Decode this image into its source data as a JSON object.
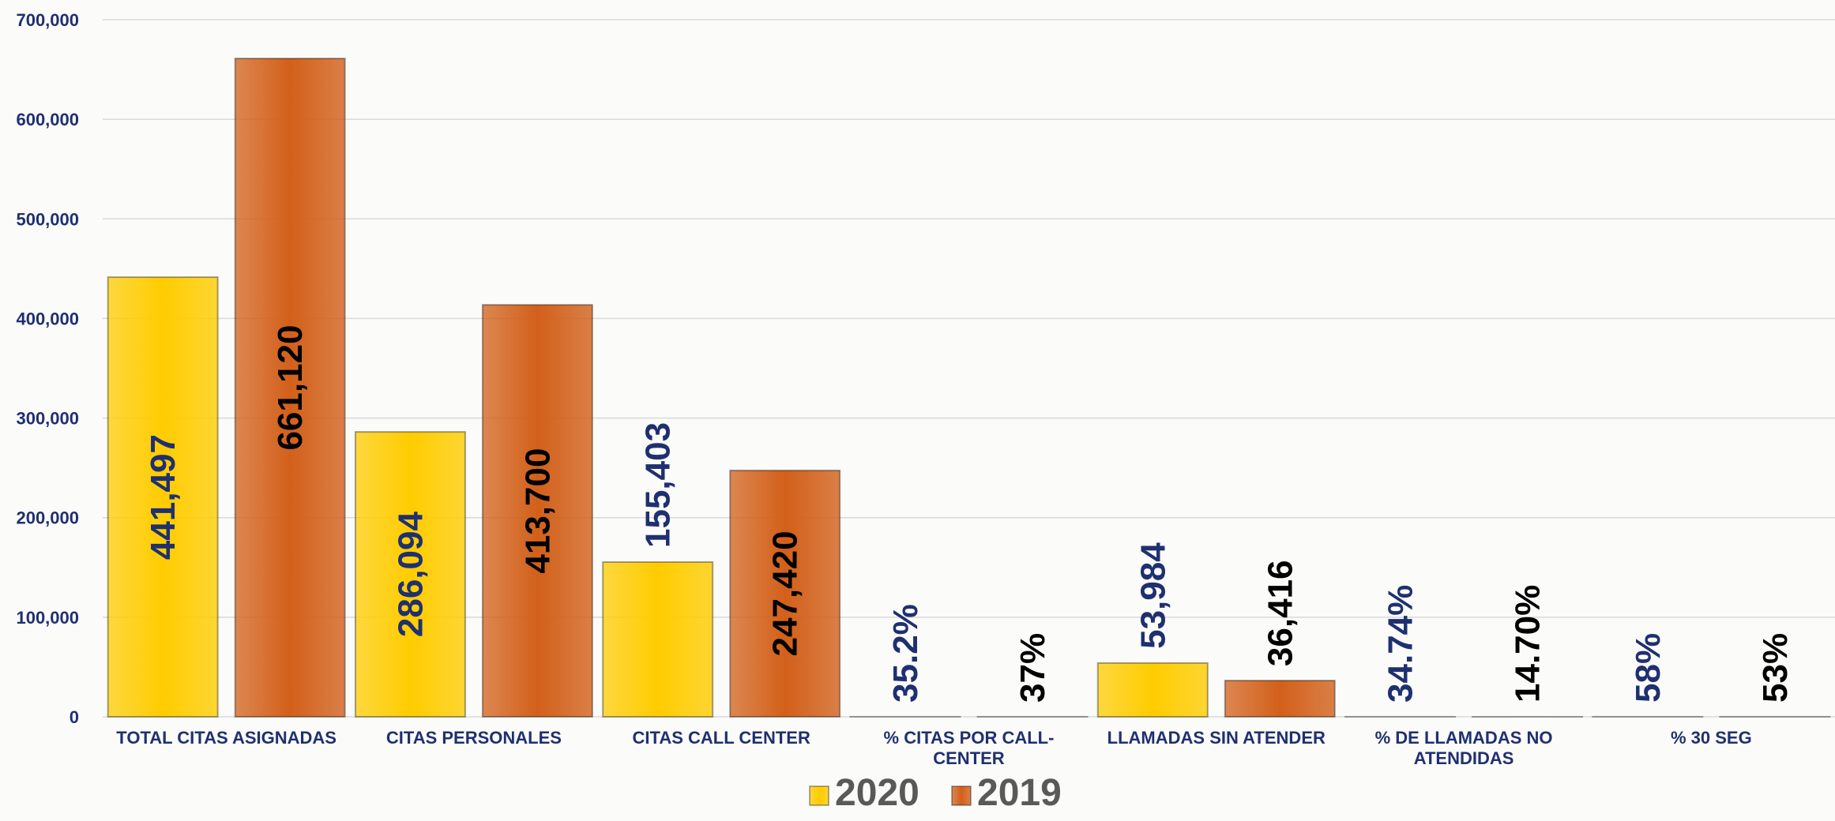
{
  "chart_data": {
    "type": "bar",
    "categories": [
      "TOTAL CITAS ASIGNADAS",
      "CITAS PERSONALES",
      "CITAS CALL CENTER",
      "% CITAS POR CALL-CENTER",
      "LLAMADAS SIN ATENDER",
      "% DE LLAMADAS NO ATENDIDAS",
      "% 30 SEG"
    ],
    "series": [
      {
        "name": "2020",
        "color": "#FFCC00",
        "label_color": "#1F3070",
        "values": [
          441497,
          286094,
          155403,
          35.2,
          53984,
          34.74,
          58
        ],
        "value_labels": [
          "441,497",
          "286,094",
          "155,403",
          "35.2%",
          "53,984",
          "34.74%",
          "58%"
        ]
      },
      {
        "name": "2019",
        "color": "#D2601A",
        "label_color": "#000000",
        "values": [
          661120,
          413700,
          247420,
          37,
          36416,
          14.7,
          53
        ],
        "value_labels": [
          "661,120",
          "413,700",
          "247,420",
          "37%",
          "36,416",
          "14.70%",
          "53%"
        ]
      }
    ],
    "ylim": [
      0,
      700000
    ],
    "yticks": [
      0,
      {
        "value": 100000,
        "label": "100,000"
      },
      {
        "value": 200000,
        "label": "200,000"
      },
      {
        "value": 300000,
        "label": "300,000"
      },
      {
        "value": 400000,
        "label": "400,000"
      },
      {
        "value": 500000,
        "label": "500,000"
      },
      {
        "value": 600000,
        "label": "600,000"
      },
      {
        "value": 700000,
        "label": "700,000"
      }
    ],
    "grid": true,
    "legend": "bottom"
  }
}
